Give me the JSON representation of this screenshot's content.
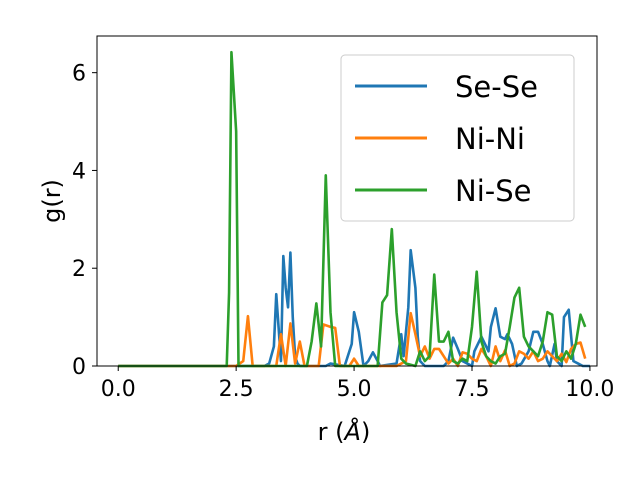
{
  "chart_data": {
    "type": "line",
    "xlabel_main": "r (",
    "xlabel_unit": "Å",
    "xlabel_end": ")",
    "ylabel": "g(r)",
    "xlim": [
      -0.45,
      10.15
    ],
    "ylim": [
      0,
      6.75
    ],
    "xticks": [
      0.0,
      2.5,
      5.0,
      7.5,
      10.0
    ],
    "xtick_labels": [
      "0.0",
      "2.5",
      "5.0",
      "7.5",
      "10.0"
    ],
    "yticks": [
      0,
      2,
      4,
      6
    ],
    "ytick_labels": [
      "0",
      "2",
      "4",
      "6"
    ],
    "grid": false,
    "legend_position": "top-right",
    "series": [
      {
        "name": "Se-Se",
        "color": "#1f77b4",
        "points": [
          [
            0.0,
            0
          ],
          [
            2.9,
            0
          ],
          [
            3.0,
            0
          ],
          [
            3.1,
            0
          ],
          [
            3.2,
            0.05
          ],
          [
            3.3,
            0.4
          ],
          [
            3.35,
            1.47
          ],
          [
            3.45,
            0.1
          ],
          [
            3.5,
            2.25
          ],
          [
            3.55,
            1.6
          ],
          [
            3.6,
            1.2
          ],
          [
            3.65,
            2.32
          ],
          [
            3.7,
            1.0
          ],
          [
            3.75,
            0.2
          ],
          [
            3.8,
            0.05
          ],
          [
            3.85,
            0
          ],
          [
            4.4,
            0
          ],
          [
            4.5,
            0.05
          ],
          [
            4.8,
            0
          ],
          [
            4.95,
            0.45
          ],
          [
            5.0,
            1.1
          ],
          [
            5.1,
            0.7
          ],
          [
            5.2,
            0
          ],
          [
            5.3,
            0.1
          ],
          [
            5.4,
            0.28
          ],
          [
            5.5,
            0.1
          ],
          [
            5.55,
            0
          ],
          [
            5.9,
            0.05
          ],
          [
            6.0,
            0.65
          ],
          [
            6.05,
            0.2
          ],
          [
            6.15,
            1.2
          ],
          [
            6.2,
            2.37
          ],
          [
            6.3,
            1.6
          ],
          [
            6.35,
            0.6
          ],
          [
            6.4,
            0.1
          ],
          [
            6.5,
            0
          ],
          [
            6.9,
            0
          ],
          [
            7.0,
            0.1
          ],
          [
            7.1,
            0.58
          ],
          [
            7.2,
            0.35
          ],
          [
            7.3,
            0.1
          ],
          [
            7.4,
            0.05
          ],
          [
            7.5,
            0
          ],
          [
            7.55,
            0.3
          ],
          [
            7.7,
            0.6
          ],
          [
            7.85,
            0.3
          ],
          [
            7.9,
            0.8
          ],
          [
            8.0,
            1.18
          ],
          [
            8.1,
            0.6
          ],
          [
            8.2,
            0.55
          ],
          [
            8.25,
            0.65
          ],
          [
            8.35,
            0.45
          ],
          [
            8.45,
            0
          ],
          [
            8.55,
            0.05
          ],
          [
            8.7,
            0.3
          ],
          [
            8.8,
            0.7
          ],
          [
            8.9,
            0.7
          ],
          [
            9.0,
            0.45
          ],
          [
            9.1,
            0.1
          ],
          [
            9.15,
            0
          ],
          [
            9.25,
            0.45
          ],
          [
            9.3,
            0.1
          ],
          [
            9.4,
            0
          ],
          [
            9.45,
            1.0
          ],
          [
            9.55,
            1.15
          ],
          [
            9.65,
            0.1
          ],
          [
            9.75,
            0.05
          ],
          [
            9.85,
            0
          ],
          [
            10.0,
            0
          ]
        ]
      },
      {
        "name": "Ni-Ni",
        "color": "#ff7f0e",
        "points": [
          [
            0.0,
            0
          ],
          [
            2.5,
            0
          ],
          [
            2.65,
            0.1
          ],
          [
            2.75,
            1.02
          ],
          [
            2.85,
            0
          ],
          [
            3.2,
            0
          ],
          [
            3.35,
            0
          ],
          [
            3.45,
            0.65
          ],
          [
            3.55,
            0
          ],
          [
            3.65,
            0.87
          ],
          [
            3.75,
            0.05
          ],
          [
            3.85,
            0.5
          ],
          [
            3.95,
            0
          ],
          [
            4.1,
            0
          ],
          [
            4.25,
            0
          ],
          [
            4.35,
            0.85
          ],
          [
            4.5,
            0.8
          ],
          [
            4.6,
            0.78
          ],
          [
            4.7,
            0
          ],
          [
            4.9,
            0
          ],
          [
            5.0,
            0.15
          ],
          [
            5.1,
            0
          ],
          [
            5.9,
            0
          ],
          [
            6.0,
            0.05
          ],
          [
            6.1,
            0.1
          ],
          [
            6.2,
            1.08
          ],
          [
            6.3,
            0.65
          ],
          [
            6.4,
            0.2
          ],
          [
            6.5,
            0.4
          ],
          [
            6.6,
            0.15
          ],
          [
            6.7,
            0.35
          ],
          [
            6.8,
            0.35
          ],
          [
            6.9,
            0.2
          ],
          [
            7.0,
            0.05
          ],
          [
            7.1,
            0.15
          ],
          [
            7.2,
            0
          ],
          [
            7.3,
            0.28
          ],
          [
            7.4,
            0.25
          ],
          [
            7.5,
            0.15
          ],
          [
            7.6,
            0.1
          ],
          [
            7.7,
            0.35
          ],
          [
            7.8,
            0.2
          ],
          [
            7.9,
            0
          ],
          [
            8.0,
            0.4
          ],
          [
            8.1,
            0.1
          ],
          [
            8.2,
            0.32
          ],
          [
            8.3,
            0
          ],
          [
            8.4,
            0.05
          ],
          [
            8.5,
            0.3
          ],
          [
            8.6,
            0.25
          ],
          [
            8.7,
            0.15
          ],
          [
            8.8,
            0.3
          ],
          [
            8.9,
            0.1
          ],
          [
            9.0,
            0.15
          ],
          [
            9.1,
            0.3
          ],
          [
            9.2,
            0.2
          ],
          [
            9.3,
            0.1
          ],
          [
            9.4,
            0.25
          ],
          [
            9.5,
            0.08
          ],
          [
            9.6,
            0.35
          ],
          [
            9.7,
            0.45
          ],
          [
            9.8,
            0.48
          ],
          [
            9.9,
            0.15
          ]
        ]
      },
      {
        "name": "Ni-Se",
        "color": "#2ca02c",
        "points": [
          [
            0.0,
            0
          ],
          [
            2.3,
            0
          ],
          [
            2.35,
            1.5
          ],
          [
            2.4,
            6.42
          ],
          [
            2.5,
            4.8
          ],
          [
            2.55,
            0
          ],
          [
            4.0,
            0
          ],
          [
            4.1,
            0.5
          ],
          [
            4.2,
            1.28
          ],
          [
            4.3,
            0.4
          ],
          [
            4.4,
            3.9
          ],
          [
            4.5,
            1.1
          ],
          [
            4.6,
            0
          ],
          [
            5.5,
            0
          ],
          [
            5.6,
            1.3
          ],
          [
            5.7,
            1.45
          ],
          [
            5.8,
            2.8
          ],
          [
            5.9,
            1.1
          ],
          [
            6.0,
            0.15
          ],
          [
            6.1,
            0.05
          ],
          [
            6.3,
            0
          ],
          [
            6.4,
            0.3
          ],
          [
            6.5,
            0.1
          ],
          [
            6.6,
            0.2
          ],
          [
            6.7,
            1.87
          ],
          [
            6.8,
            0.5
          ],
          [
            6.9,
            0.5
          ],
          [
            7.0,
            0.7
          ],
          [
            7.1,
            0.1
          ],
          [
            7.2,
            0.05
          ],
          [
            7.3,
            0.15
          ],
          [
            7.4,
            0.1
          ],
          [
            7.5,
            0.8
          ],
          [
            7.6,
            1.93
          ],
          [
            7.7,
            0.5
          ],
          [
            7.8,
            0.2
          ],
          [
            7.9,
            0.1
          ],
          [
            8.0,
            0.05
          ],
          [
            8.1,
            0.2
          ],
          [
            8.2,
            0.25
          ],
          [
            8.3,
            0.8
          ],
          [
            8.4,
            1.4
          ],
          [
            8.5,
            1.6
          ],
          [
            8.6,
            0.6
          ],
          [
            8.7,
            0.4
          ],
          [
            8.8,
            0.3
          ],
          [
            8.9,
            0.2
          ],
          [
            9.0,
            0.5
          ],
          [
            9.1,
            1.1
          ],
          [
            9.2,
            1.05
          ],
          [
            9.3,
            0.2
          ],
          [
            9.4,
            0.1
          ],
          [
            9.5,
            0.3
          ],
          [
            9.6,
            0.15
          ],
          [
            9.7,
            0.45
          ],
          [
            9.8,
            1.05
          ],
          [
            9.9,
            0.8
          ]
        ]
      }
    ]
  }
}
